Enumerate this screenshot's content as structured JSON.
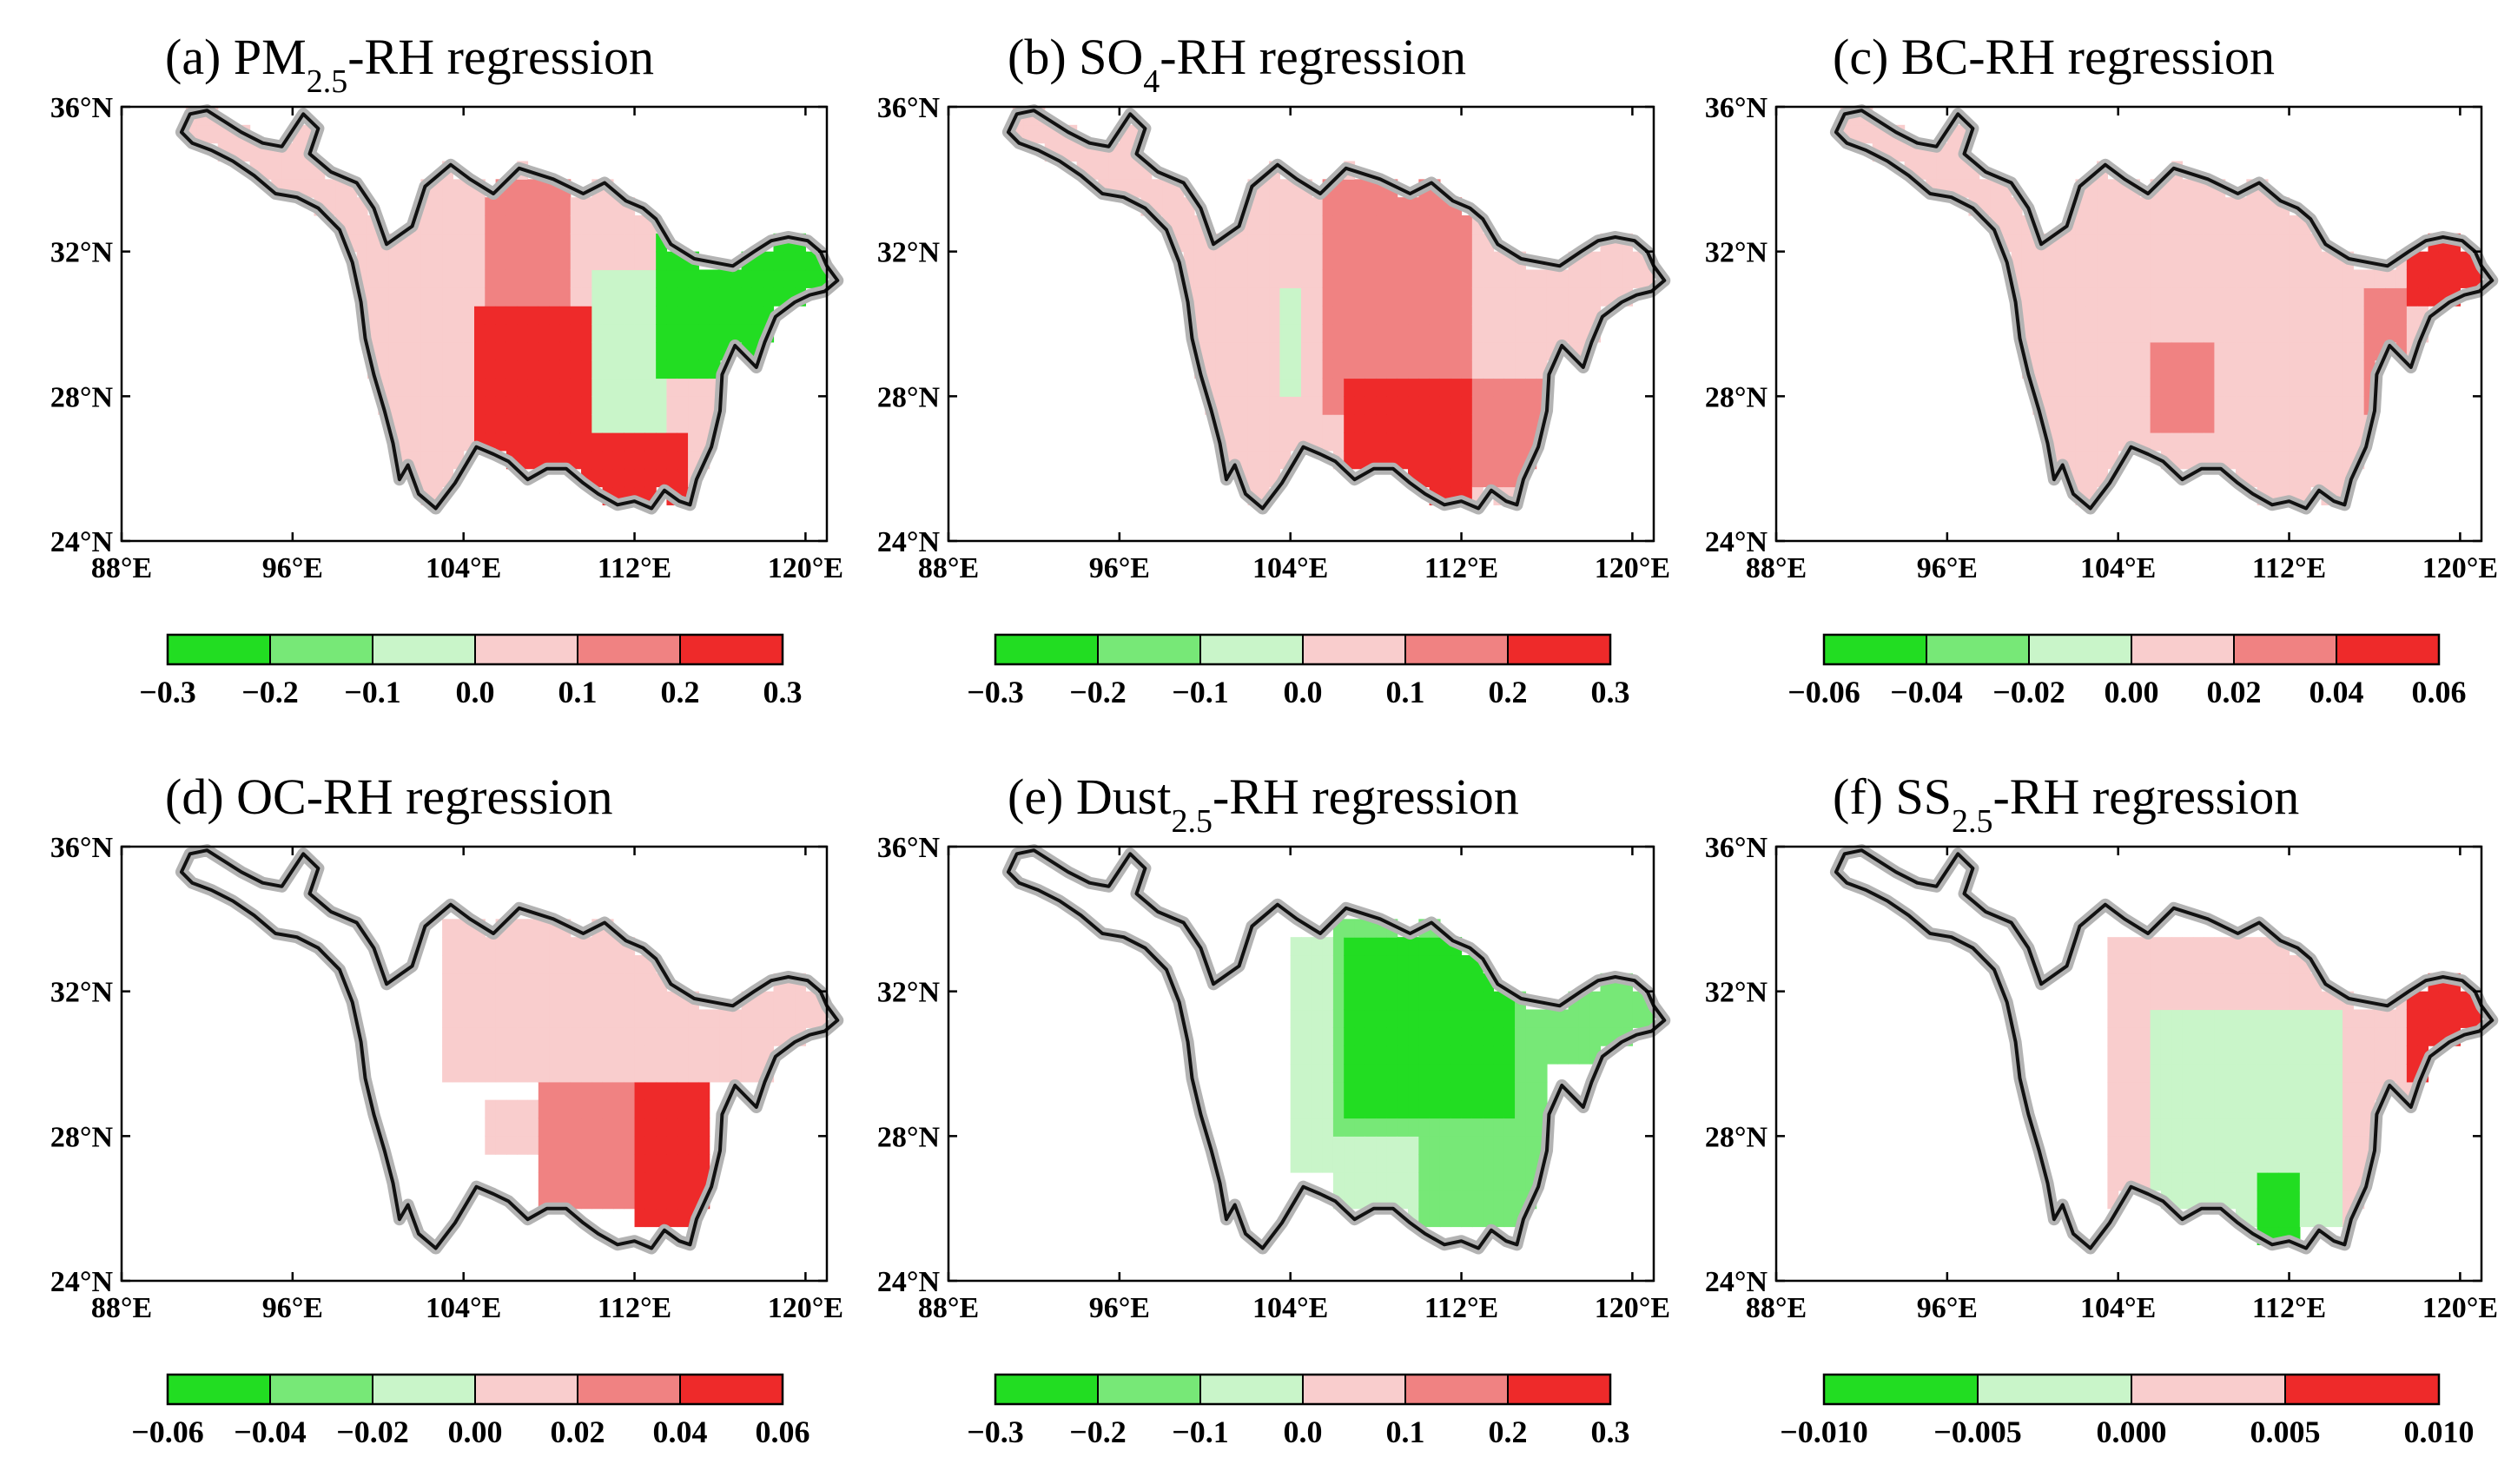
{
  "chart_data": [
    {
      "type": "heatmap",
      "id": "a",
      "title_prefix": "(a) PM",
      "title_sub": "2.5",
      "title_suffix": "-RH regression",
      "x_ticks": [
        "88°E",
        "96°E",
        "104°E",
        "112°E",
        "120°E"
      ],
      "y_ticks": [
        "36°N",
        "32°N",
        "28°N",
        "24°N"
      ],
      "x_range": [
        88,
        121
      ],
      "y_range": [
        24,
        36
      ],
      "colorbar": {
        "colors": [
          "#22dd22",
          "#77e877",
          "#c9f5c9",
          "#f9cdcd",
          "#f08282",
          "#ee2a2a"
        ],
        "labels": [
          "-0.3",
          "-0.2",
          "-0.1",
          "0.0",
          "0.1",
          "0.2",
          "0.3"
        ]
      },
      "pattern": {
        "default_level": 3,
        "regions": [
          {
            "lon": [
              103.5,
              107.5
            ],
            "lat": [
              29.5,
              34.0
            ],
            "level": 3
          },
          {
            "lon": [
              104.5,
              110.5
            ],
            "lat": [
              24.8,
              30.5
            ],
            "level": 5
          },
          {
            "lon": [
              105.0,
              109.0
            ],
            "lat": [
              30.5,
              33.8
            ],
            "level": 4
          },
          {
            "lon": [
              110.0,
              113.5
            ],
            "lat": [
              27.0,
              31.5
            ],
            "level": 2
          },
          {
            "lon": [
              113.0,
              121.0
            ],
            "lat": [
              28.5,
              32.5
            ],
            "level": 0
          },
          {
            "lon": [
              110.5,
              114.5
            ],
            "lat": [
              24.8,
              27.0
            ],
            "level": 5
          },
          {
            "lon": [
              103.5,
              104.5
            ],
            "lat": [
              26.0,
              29.5
            ],
            "level": 3
          }
        ]
      }
    },
    {
      "type": "heatmap",
      "id": "b",
      "title_prefix": "(b) SO",
      "title_sub": "4",
      "title_suffix": "-RH regression",
      "x_ticks": [
        "88°E",
        "96°E",
        "104°E",
        "112°E",
        "120°E"
      ],
      "y_ticks": [
        "36°N",
        "32°N",
        "28°N",
        "24°N"
      ],
      "x_range": [
        88,
        121
      ],
      "y_range": [
        24,
        36
      ],
      "colorbar": {
        "colors": [
          "#22dd22",
          "#77e877",
          "#c9f5c9",
          "#f9cdcd",
          "#f08282",
          "#ee2a2a"
        ],
        "labels": [
          "-0.3",
          "-0.2",
          "-0.1",
          "0.0",
          "0.1",
          "0.2",
          "0.3"
        ]
      },
      "pattern": {
        "default_level": 3,
        "regions": [
          {
            "lon": [
              105.5,
              112.5
            ],
            "lat": [
              27.5,
              33.8
            ],
            "level": 4
          },
          {
            "lon": [
              106.5,
              112.5
            ],
            "lat": [
              24.8,
              28.5
            ],
            "level": 5
          },
          {
            "lon": [
              112.5,
              116.0
            ],
            "lat": [
              25.5,
              28.5
            ],
            "level": 4
          },
          {
            "lon": [
              103.5,
              104.5
            ],
            "lat": [
              28.0,
              31.0
            ],
            "level": 2
          }
        ]
      }
    },
    {
      "type": "heatmap",
      "id": "c",
      "title_prefix": "(c) BC-RH regression",
      "title_sub": "",
      "title_suffix": "",
      "x_ticks": [
        "88°E",
        "96°E",
        "104°E",
        "112°E",
        "120°E"
      ],
      "y_ticks": [
        "36°N",
        "32°N",
        "28°N",
        "24°N"
      ],
      "x_range": [
        88,
        121
      ],
      "y_range": [
        24,
        36
      ],
      "colorbar": {
        "colors": [
          "#22dd22",
          "#77e877",
          "#c9f5c9",
          "#f9cdcd",
          "#f08282",
          "#ee2a2a"
        ],
        "labels": [
          "-0.06",
          "-0.04",
          "-0.02",
          "0.00",
          "0.02",
          "0.04",
          "0.06"
        ]
      },
      "pattern": {
        "default_level": 3,
        "regions": [
          {
            "lon": [
              117.5,
              121.0
            ],
            "lat": [
              30.5,
              32.5
            ],
            "level": 5
          },
          {
            "lon": [
              115.5,
              117.5
            ],
            "lat": [
              27.5,
              31.0
            ],
            "level": 4
          },
          {
            "lon": [
              105.5,
              108.5
            ],
            "lat": [
              27.0,
              29.5
            ],
            "level": 4
          }
        ]
      }
    },
    {
      "type": "heatmap",
      "id": "d",
      "title_prefix": "(d) OC-RH regression",
      "title_sub": "",
      "title_suffix": "",
      "x_ticks": [
        "88°E",
        "96°E",
        "104°E",
        "112°E",
        "120°E"
      ],
      "y_ticks": [
        "36°N",
        "32°N",
        "28°N",
        "24°N"
      ],
      "x_range": [
        88,
        121
      ],
      "y_range": [
        24,
        36
      ],
      "colorbar": {
        "colors": [
          "#22dd22",
          "#77e877",
          "#c9f5c9",
          "#f9cdcd",
          "#f08282",
          "#ee2a2a"
        ],
        "labels": [
          "-0.06",
          "-0.04",
          "-0.02",
          "0.00",
          "0.02",
          "0.04",
          "0.06"
        ]
      },
      "pattern": {
        "default_level": -1,
        "regions": [
          {
            "lon": [
              103.0,
              121.0
            ],
            "lat": [
              29.5,
              34.0
            ],
            "level": 3
          },
          {
            "lon": [
              107.5,
              112.5
            ],
            "lat": [
              26.0,
              29.5
            ],
            "level": 4
          },
          {
            "lon": [
              112.0,
              115.5
            ],
            "lat": [
              25.5,
              29.5
            ],
            "level": 5
          },
          {
            "lon": [
              105.0,
              107.5
            ],
            "lat": [
              27.5,
              29.0
            ],
            "level": 3
          }
        ]
      }
    },
    {
      "type": "heatmap",
      "id": "e",
      "title_prefix": "(e) Dust",
      "title_sub": "2.5",
      "title_suffix": "-RH regression",
      "x_ticks": [
        "88°E",
        "96°E",
        "104°E",
        "112°E",
        "120°E"
      ],
      "y_ticks": [
        "36°N",
        "32°N",
        "28°N",
        "24°N"
      ],
      "x_range": [
        88,
        121
      ],
      "y_range": [
        24,
        36
      ],
      "colorbar": {
        "colors": [
          "#22dd22",
          "#77e877",
          "#c9f5c9",
          "#f9cdcd",
          "#f08282",
          "#ee2a2a"
        ],
        "labels": [
          "-0.3",
          "-0.2",
          "-0.1",
          "0.0",
          "0.1",
          "0.2",
          "0.3"
        ]
      },
      "pattern": {
        "default_level": -1,
        "regions": [
          {
            "lon": [
              104.0,
              106.5
            ],
            "lat": [
              27.0,
              33.5
            ],
            "level": 2
          },
          {
            "lon": [
              106.0,
              116.0
            ],
            "lat": [
              25.5,
              33.8
            ],
            "level": 1
          },
          {
            "lon": [
              106.5,
              114.5
            ],
            "lat": [
              28.5,
              33.5
            ],
            "level": 0
          },
          {
            "lon": [
              116.0,
              121.0
            ],
            "lat": [
              30.0,
              32.5
            ],
            "level": 1
          },
          {
            "lon": [
              106.0,
              110.0
            ],
            "lat": [
              25.5,
              28.0
            ],
            "level": 2
          }
        ]
      }
    },
    {
      "type": "heatmap",
      "id": "f",
      "title_prefix": "(f) SS",
      "title_sub": "2.5",
      "title_suffix": "-RH regression",
      "x_ticks": [
        "88°E",
        "96°E",
        "104°E",
        "112°E",
        "120°E"
      ],
      "y_ticks": [
        "36°N",
        "32°N",
        "28°N",
        "24°N"
      ],
      "x_range": [
        88,
        121
      ],
      "y_range": [
        24,
        36
      ],
      "colorbar": {
        "colors": [
          "#22dd22",
          "#c9f5c9",
          "#f9cdcd",
          "#ee2a2a"
        ],
        "labels": [
          "-0.010",
          "-0.005",
          "0.000",
          "0.005",
          "0.010"
        ]
      },
      "pattern": {
        "default_level": -1,
        "regions": [
          {
            "lon": [
              103.5,
              118.0
            ],
            "lat": [
              25.5,
              33.5
            ],
            "level": 2
          },
          {
            "lon": [
              105.5,
              114.5
            ],
            "lat": [
              25.5,
              31.5
            ],
            "level": 1
          },
          {
            "lon": [
              110.5,
              112.5
            ],
            "lat": [
              25.0,
              27.0
            ],
            "level": 0
          },
          {
            "lon": [
              117.5,
              121.0
            ],
            "lat": [
              29.5,
              32.5
            ],
            "level": 3
          }
        ]
      }
    }
  ]
}
